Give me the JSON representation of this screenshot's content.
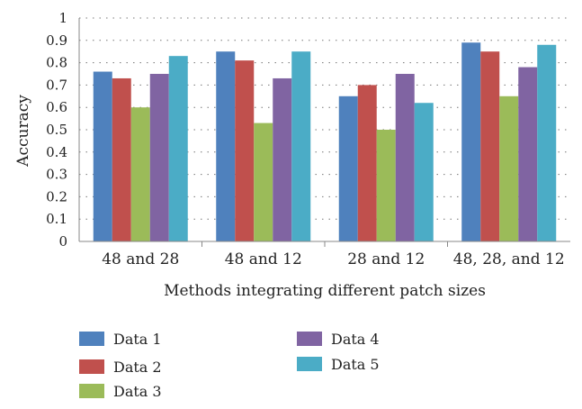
{
  "chart_data": {
    "type": "bar",
    "title": "",
    "xlabel": "Methods integrating different patch sizes",
    "ylabel": "Accuracy",
    "ylim": [
      0,
      1
    ],
    "yticks": [
      "0",
      "0.1",
      "0.2",
      "0.3",
      "0.4",
      "0.5",
      "0.6",
      "0.7",
      "0.8",
      "0.9",
      "1"
    ],
    "grid": true,
    "legend_position": "bottom",
    "categories": [
      "48 and 28",
      "48 and 12",
      "28 and 12",
      "48, 28, and 12"
    ],
    "series": [
      {
        "name": "Data 1",
        "color": "#4F81BD",
        "values": [
          0.76,
          0.85,
          0.65,
          0.89
        ]
      },
      {
        "name": "Data 2",
        "color": "#C0504D",
        "values": [
          0.73,
          0.81,
          0.7,
          0.85
        ]
      },
      {
        "name": "Data 3",
        "color": "#9BBB59",
        "values": [
          0.6,
          0.53,
          0.5,
          0.65
        ]
      },
      {
        "name": "Data 4",
        "color": "#8064A2",
        "values": [
          0.75,
          0.73,
          0.75,
          0.78
        ]
      },
      {
        "name": "Data 5",
        "color": "#4BACC6",
        "values": [
          0.83,
          0.85,
          0.62,
          0.88
        ]
      }
    ]
  }
}
